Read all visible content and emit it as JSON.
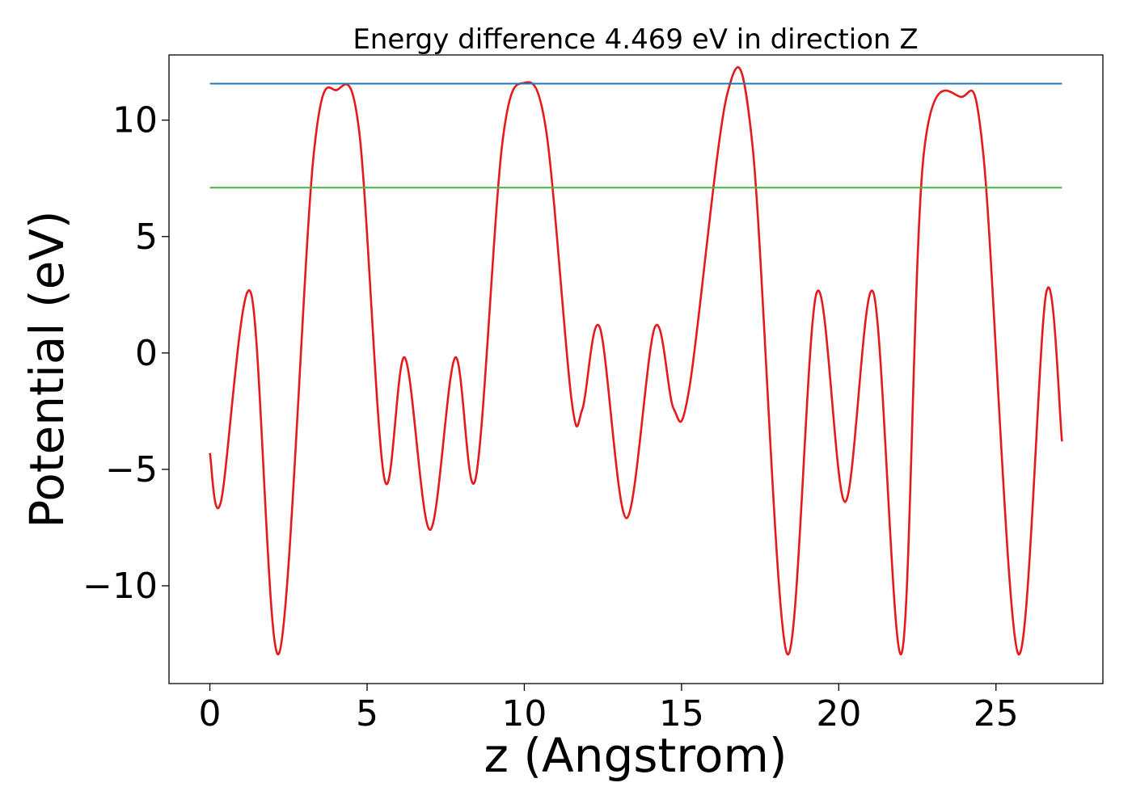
{
  "chart_data": {
    "type": "line",
    "title": "Energy difference 4.469 eV in direction Z",
    "xlabel": "z (Angstrom)",
    "ylabel": "Potential (eV)",
    "xlim": [
      -1.3,
      28.4
    ],
    "ylim": [
      -14.2,
      12.8
    ],
    "xticks": [
      0,
      5,
      10,
      15,
      20,
      25
    ],
    "xtick_labels": [
      "0",
      "5",
      "10",
      "15",
      "20",
      "25"
    ],
    "yticks": [
      -10,
      -5,
      0,
      5,
      10
    ],
    "ytick_labels": [
      "−10",
      "−5",
      "0",
      "5",
      "10"
    ],
    "grid": false,
    "series": [
      {
        "color": "#e41a1c",
        "x": [
          0,
          0.35,
          1.3,
          2.2,
          3.3,
          4.05,
          4.75,
          5.55,
          6.2,
          7.0,
          7.8,
          8.45,
          9.3,
          10.0,
          10.7,
          11.5,
          11.85,
          12.4,
          13.25,
          14.15,
          14.75,
          15.25,
          16.45,
          17.25,
          18.35,
          19.3,
          20.2,
          21.1,
          22.0,
          22.7,
          23.9,
          24.6,
          25.7,
          26.6,
          27.1
        ],
        "y": [
          -4.3,
          -6.4,
          2.6,
          -12.9,
          8.5,
          11.3,
          9.5,
          -5.4,
          -0.2,
          -7.6,
          -0.2,
          -5.4,
          9.0,
          11.6,
          9.5,
          -2.0,
          -2.4,
          1.1,
          -7.1,
          1.1,
          -2.4,
          -1.5,
          11.1,
          9.0,
          -12.9,
          2.6,
          -6.4,
          2.6,
          -12.9,
          8.5,
          11.0,
          8.5,
          -12.9,
          2.6,
          -3.8
        ]
      },
      {
        "color": "#1f77b4",
        "x": [
          0,
          27.1
        ],
        "y": [
          11.57,
          11.57
        ]
      },
      {
        "color": "#4daf4a",
        "x": [
          0,
          27.1
        ],
        "y": [
          7.1,
          7.1
        ]
      }
    ]
  }
}
